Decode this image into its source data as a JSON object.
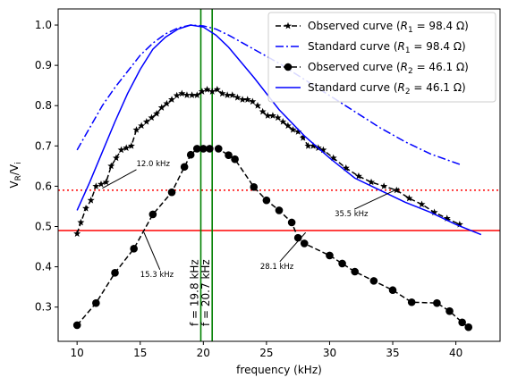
{
  "chart_data": {
    "type": "line",
    "title": "",
    "xlabel": "frequency (kHz)",
    "ylabel": "V_R/V_i",
    "xlim": [
      8.5,
      43.5
    ],
    "ylim": [
      0.215,
      1.04
    ],
    "x_ticks": [
      10,
      15,
      20,
      25,
      30,
      35,
      40
    ],
    "y_ticks": [
      0.3,
      0.4,
      0.5,
      0.6,
      0.7,
      0.8,
      0.9,
      1.0
    ],
    "grid": false,
    "legend_position": "top-right",
    "series": [
      {
        "name": "Observed curve (R_1 = 98.4 Ω)",
        "legend_label": "Observed curve ($R_1 = 98.4\\,\\Omega$)",
        "color": "#000000",
        "linestyle": "dashed",
        "marker": "star",
        "x": [
          10.0,
          10.3,
          10.7,
          11.1,
          11.5,
          11.9,
          12.3,
          12.7,
          13.1,
          13.5,
          13.9,
          14.3,
          14.7,
          15.1,
          15.5,
          15.9,
          16.3,
          16.7,
          17.1,
          17.5,
          17.9,
          18.3,
          18.7,
          19.1,
          19.5,
          19.9,
          20.3,
          20.7,
          21.1,
          21.5,
          21.9,
          22.3,
          22.7,
          23.1,
          23.5,
          23.9,
          24.3,
          24.7,
          25.1,
          25.5,
          25.9,
          26.3,
          26.7,
          27.1,
          27.5,
          27.9,
          28.3,
          28.7,
          29.1,
          29.5,
          30.3,
          31.3,
          32.3,
          33.3,
          34.3,
          35.3,
          36.3,
          37.3,
          38.3,
          39.3,
          40.3
        ],
        "y": [
          0.482,
          0.51,
          0.545,
          0.565,
          0.6,
          0.605,
          0.61,
          0.65,
          0.67,
          0.69,
          0.695,
          0.7,
          0.74,
          0.75,
          0.76,
          0.77,
          0.78,
          0.795,
          0.805,
          0.815,
          0.825,
          0.83,
          0.826,
          0.826,
          0.826,
          0.835,
          0.84,
          0.835,
          0.84,
          0.83,
          0.826,
          0.826,
          0.82,
          0.815,
          0.815,
          0.81,
          0.8,
          0.785,
          0.775,
          0.775,
          0.77,
          0.76,
          0.75,
          0.74,
          0.735,
          0.72,
          0.7,
          0.7,
          0.695,
          0.69,
          0.67,
          0.645,
          0.625,
          0.61,
          0.6,
          0.59,
          0.57,
          0.555,
          0.535,
          0.52,
          0.505
        ]
      },
      {
        "name": "Standard curve (R_1 = 98.4 Ω)",
        "legend_label": "Standard curve ($R_1 = 98.4\\,\\Omega$)",
        "color": "#0000ff",
        "linestyle": "dashdot",
        "marker": "none",
        "x": [
          10,
          11,
          12,
          13,
          14,
          15,
          16,
          17,
          18,
          19,
          20,
          21,
          22,
          24,
          26,
          28,
          30,
          32,
          34,
          36,
          38,
          40.5
        ],
        "y": [
          0.69,
          0.745,
          0.8,
          0.845,
          0.885,
          0.925,
          0.955,
          0.978,
          0.993,
          1.0,
          0.998,
          0.99,
          0.975,
          0.94,
          0.905,
          0.865,
          0.825,
          0.785,
          0.745,
          0.71,
          0.68,
          0.652
        ]
      },
      {
        "name": "Observed curve (R_2 = 46.1 Ω)",
        "legend_label": "Observed curve ($R_2 = 46.1\\,\\Omega$)",
        "color": "#000000",
        "linestyle": "dashed",
        "marker": "circle",
        "x": [
          10.0,
          11.5,
          13.0,
          14.5,
          16.0,
          17.5,
          18.5,
          19.0,
          19.5,
          20.0,
          20.5,
          21.2,
          22.0,
          22.5,
          24.0,
          25.0,
          26.0,
          27.0,
          27.5,
          28.0,
          30.0,
          31.0,
          32.0,
          33.5,
          35.0,
          36.5,
          38.5,
          39.5,
          40.5,
          41.0
        ],
        "y": [
          0.255,
          0.31,
          0.385,
          0.445,
          0.53,
          0.585,
          0.648,
          0.678,
          0.693,
          0.693,
          0.693,
          0.693,
          0.677,
          0.667,
          0.598,
          0.565,
          0.54,
          0.51,
          0.472,
          0.458,
          0.428,
          0.408,
          0.388,
          0.365,
          0.342,
          0.312,
          0.31,
          0.29,
          0.262,
          0.25
        ]
      },
      {
        "name": "Standard curve (R_2 = 46.1 Ω)",
        "legend_label": "Standard curve ($R_2 = 46.1\\,\\Omega$)",
        "color": "#0000ff",
        "linestyle": "solid",
        "marker": "none",
        "x": [
          10,
          11,
          12,
          13,
          14,
          15,
          16,
          17,
          18,
          19,
          20,
          21,
          22,
          24,
          26,
          28,
          30,
          32,
          34,
          36,
          38,
          40,
          42
        ],
        "y": [
          0.54,
          0.61,
          0.685,
          0.76,
          0.83,
          0.89,
          0.94,
          0.97,
          0.99,
          1.0,
          0.995,
          0.975,
          0.945,
          0.87,
          0.79,
          0.725,
          0.67,
          0.62,
          0.59,
          0.56,
          0.535,
          0.505,
          0.48
        ]
      }
    ],
    "hlines": [
      {
        "y": 0.59,
        "color": "#ff0000",
        "linestyle": "dotted"
      },
      {
        "y": 0.49,
        "color": "#ff0000",
        "linestyle": "solid"
      }
    ],
    "vlines": [
      {
        "x": 19.8,
        "color": "#008000",
        "label": "f = 19.8 kHz"
      },
      {
        "x": 20.7,
        "color": "#008000",
        "label": "f = 20.7 kHz"
      }
    ],
    "annotations": [
      {
        "text": "12.0 kHz",
        "text_x": 14.7,
        "text_y": 0.65,
        "point_x": 12.0,
        "point_y": 0.595
      },
      {
        "text": "15.3 kHz",
        "text_x": 15.0,
        "text_y": 0.375,
        "point_x": 15.3,
        "point_y": 0.485
      },
      {
        "text": "28.1 kHz",
        "text_x": 24.5,
        "text_y": 0.395,
        "point_x": 28.1,
        "point_y": 0.485
      },
      {
        "text": "35.5 kHz",
        "text_x": 30.4,
        "text_y": 0.525,
        "point_x": 35.5,
        "point_y": 0.595
      }
    ]
  }
}
